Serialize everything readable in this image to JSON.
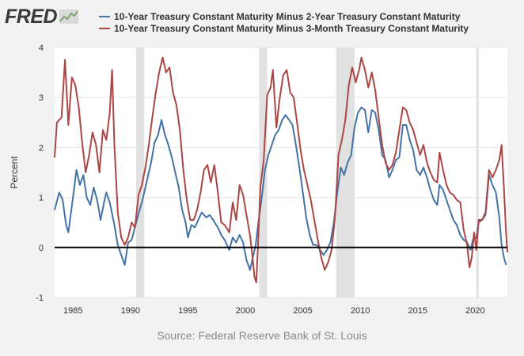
{
  "header": {
    "logo_text": "FRED",
    "logo_icon": "fred-chart-icon",
    "legend": [
      {
        "label": "10-Year Treasury Constant Maturity Minus 2-Year Treasury Constant Maturity",
        "color": "#4572a7"
      },
      {
        "label": "10-Year Treasury Constant Maturity Minus 3-Month Treasury Constant Maturity",
        "color": "#aa4643"
      }
    ]
  },
  "footer": {
    "source": "Source: Federal Reserve Bank of St. Louis"
  },
  "chart_data": {
    "type": "line",
    "xlabel": "",
    "ylabel": "Percent",
    "xlim": [
      1983.4,
      2022.8
    ],
    "ylim": [
      -1,
      4
    ],
    "x_ticks": [
      1985,
      1990,
      1995,
      2000,
      2005,
      2010,
      2015,
      2020
    ],
    "y_ticks": [
      -1,
      0,
      1,
      2,
      3,
      4
    ],
    "grid": "horizontal",
    "background": "#ffffff",
    "zero_line": true,
    "recessions": [
      [
        1990.5,
        1991.2
      ],
      [
        2001.2,
        2001.9
      ],
      [
        2007.9,
        2009.5
      ],
      [
        2020.1,
        2020.3
      ]
    ],
    "series": [
      {
        "name": "10-Year Treasury Constant Maturity Minus 2-Year Treasury Constant Maturity",
        "color": "#4572a7",
        "points": [
          [
            1983.4,
            0.75
          ],
          [
            1983.8,
            1.1
          ],
          [
            1984.1,
            0.95
          ],
          [
            1984.4,
            0.45
          ],
          [
            1984.6,
            0.3
          ],
          [
            1985.0,
            1.0
          ],
          [
            1985.3,
            1.55
          ],
          [
            1985.6,
            1.25
          ],
          [
            1985.9,
            1.45
          ],
          [
            1986.2,
            1.0
          ],
          [
            1986.5,
            0.85
          ],
          [
            1986.8,
            1.2
          ],
          [
            1987.1,
            0.95
          ],
          [
            1987.4,
            0.55
          ],
          [
            1987.7,
            0.9
          ],
          [
            1987.9,
            1.1
          ],
          [
            1988.2,
            0.9
          ],
          [
            1988.6,
            0.45
          ],
          [
            1988.9,
            0.05
          ],
          [
            1989.2,
            -0.15
          ],
          [
            1989.5,
            -0.35
          ],
          [
            1989.8,
            0.1
          ],
          [
            1990.1,
            0.15
          ],
          [
            1990.5,
            0.5
          ],
          [
            1990.8,
            0.75
          ],
          [
            1991.1,
            1.0
          ],
          [
            1991.4,
            1.3
          ],
          [
            1991.8,
            1.7
          ],
          [
            1992.1,
            2.1
          ],
          [
            1992.4,
            2.25
          ],
          [
            1992.7,
            2.55
          ],
          [
            1993.0,
            2.25
          ],
          [
            1993.3,
            2.05
          ],
          [
            1993.6,
            1.8
          ],
          [
            1993.9,
            1.5
          ],
          [
            1994.2,
            1.2
          ],
          [
            1994.5,
            0.75
          ],
          [
            1994.8,
            0.5
          ],
          [
            1995.0,
            0.2
          ],
          [
            1995.3,
            0.45
          ],
          [
            1995.6,
            0.4
          ],
          [
            1995.9,
            0.55
          ],
          [
            1996.2,
            0.7
          ],
          [
            1996.6,
            0.6
          ],
          [
            1996.9,
            0.65
          ],
          [
            1997.2,
            0.55
          ],
          [
            1997.6,
            0.4
          ],
          [
            1997.9,
            0.25
          ],
          [
            1998.2,
            0.15
          ],
          [
            1998.6,
            -0.05
          ],
          [
            1998.9,
            0.2
          ],
          [
            1999.2,
            0.1
          ],
          [
            1999.5,
            0.25
          ],
          [
            1999.8,
            0.1
          ],
          [
            2000.1,
            -0.25
          ],
          [
            2000.4,
            -0.45
          ],
          [
            2000.7,
            -0.15
          ],
          [
            2000.9,
            0.05
          ],
          [
            2001.1,
            0.45
          ],
          [
            2001.4,
            0.95
          ],
          [
            2001.7,
            1.55
          ],
          [
            2002.0,
            1.85
          ],
          [
            2002.3,
            2.05
          ],
          [
            2002.6,
            2.25
          ],
          [
            2002.9,
            2.35
          ],
          [
            2003.2,
            2.55
          ],
          [
            2003.5,
            2.65
          ],
          [
            2003.8,
            2.55
          ],
          [
            2004.1,
            2.45
          ],
          [
            2004.4,
            2.05
          ],
          [
            2004.7,
            1.6
          ],
          [
            2005.0,
            1.1
          ],
          [
            2005.3,
            0.6
          ],
          [
            2005.6,
            0.25
          ],
          [
            2005.9,
            0.05
          ],
          [
            2006.2,
            0.05
          ],
          [
            2006.5,
            -0.05
          ],
          [
            2006.8,
            -0.15
          ],
          [
            2007.1,
            -0.05
          ],
          [
            2007.4,
            0.1
          ],
          [
            2007.7,
            0.5
          ],
          [
            2008.0,
            1.1
          ],
          [
            2008.3,
            1.6
          ],
          [
            2008.6,
            1.45
          ],
          [
            2008.9,
            1.7
          ],
          [
            2009.2,
            1.85
          ],
          [
            2009.5,
            2.4
          ],
          [
            2009.8,
            2.7
          ],
          [
            2010.1,
            2.8
          ],
          [
            2010.4,
            2.75
          ],
          [
            2010.7,
            2.3
          ],
          [
            2011.0,
            2.75
          ],
          [
            2011.3,
            2.7
          ],
          [
            2011.6,
            2.35
          ],
          [
            2011.9,
            1.85
          ],
          [
            2012.2,
            1.75
          ],
          [
            2012.5,
            1.4
          ],
          [
            2012.8,
            1.55
          ],
          [
            2013.1,
            1.75
          ],
          [
            2013.4,
            1.8
          ],
          [
            2013.7,
            2.45
          ],
          [
            2014.0,
            2.45
          ],
          [
            2014.3,
            2.15
          ],
          [
            2014.6,
            1.95
          ],
          [
            2014.9,
            1.55
          ],
          [
            2015.2,
            1.45
          ],
          [
            2015.5,
            1.6
          ],
          [
            2015.8,
            1.4
          ],
          [
            2016.1,
            1.15
          ],
          [
            2016.4,
            0.95
          ],
          [
            2016.7,
            0.85
          ],
          [
            2016.9,
            1.25
          ],
          [
            2017.2,
            1.15
          ],
          [
            2017.5,
            0.95
          ],
          [
            2017.8,
            0.75
          ],
          [
            2018.1,
            0.55
          ],
          [
            2018.4,
            0.45
          ],
          [
            2018.7,
            0.25
          ],
          [
            2019.0,
            0.15
          ],
          [
            2019.3,
            0.1
          ],
          [
            2019.6,
            -0.05
          ],
          [
            2019.8,
            0.15
          ],
          [
            2020.1,
            0.2
          ],
          [
            2020.3,
            0.5
          ],
          [
            2020.6,
            0.55
          ],
          [
            2020.9,
            0.65
          ],
          [
            2021.2,
            1.45
          ],
          [
            2021.5,
            1.25
          ],
          [
            2021.8,
            1.1
          ],
          [
            2022.1,
            0.6
          ],
          [
            2022.3,
            0.05
          ],
          [
            2022.5,
            -0.2
          ],
          [
            2022.7,
            -0.35
          ]
        ]
      },
      {
        "name": "10-Year Treasury Constant Maturity Minus 3-Month Treasury Constant Maturity",
        "color": "#aa4643",
        "points": [
          [
            1983.4,
            1.8
          ],
          [
            1983.6,
            2.5
          ],
          [
            1984.0,
            2.6
          ],
          [
            1984.3,
            3.75
          ],
          [
            1984.6,
            2.45
          ],
          [
            1984.9,
            3.4
          ],
          [
            1985.2,
            3.25
          ],
          [
            1985.5,
            2.8
          ],
          [
            1985.8,
            2.1
          ],
          [
            1986.1,
            1.5
          ],
          [
            1986.4,
            1.85
          ],
          [
            1986.7,
            2.3
          ],
          [
            1987.0,
            2.05
          ],
          [
            1987.3,
            1.5
          ],
          [
            1987.6,
            2.35
          ],
          [
            1987.9,
            2.15
          ],
          [
            1988.2,
            2.7
          ],
          [
            1988.4,
            3.55
          ],
          [
            1988.6,
            2.05
          ],
          [
            1988.9,
            0.7
          ],
          [
            1989.2,
            0.2
          ],
          [
            1989.5,
            0.05
          ],
          [
            1989.8,
            0.2
          ],
          [
            1990.1,
            0.5
          ],
          [
            1990.4,
            0.4
          ],
          [
            1990.7,
            1.05
          ],
          [
            1991.0,
            1.25
          ],
          [
            1991.3,
            1.6
          ],
          [
            1991.6,
            2.05
          ],
          [
            1991.9,
            2.6
          ],
          [
            1992.2,
            3.1
          ],
          [
            1992.5,
            3.5
          ],
          [
            1992.8,
            3.8
          ],
          [
            1993.1,
            3.5
          ],
          [
            1993.4,
            3.6
          ],
          [
            1993.7,
            3.1
          ],
          [
            1994.0,
            2.85
          ],
          [
            1994.3,
            2.35
          ],
          [
            1994.6,
            1.55
          ],
          [
            1994.9,
            0.95
          ],
          [
            1995.2,
            0.55
          ],
          [
            1995.5,
            0.55
          ],
          [
            1995.8,
            0.75
          ],
          [
            1996.1,
            1.1
          ],
          [
            1996.4,
            1.55
          ],
          [
            1996.7,
            1.65
          ],
          [
            1997.0,
            1.3
          ],
          [
            1997.3,
            1.65
          ],
          [
            1997.6,
            1.1
          ],
          [
            1997.9,
            0.5
          ],
          [
            1998.2,
            0.45
          ],
          [
            1998.6,
            0.3
          ],
          [
            1998.9,
            0.9
          ],
          [
            1999.2,
            0.55
          ],
          [
            1999.5,
            1.25
          ],
          [
            1999.8,
            1.05
          ],
          [
            2000.1,
            0.65
          ],
          [
            2000.4,
            0.25
          ],
          [
            2000.6,
            -0.15
          ],
          [
            2000.8,
            -0.6
          ],
          [
            2000.95,
            -0.7
          ],
          [
            2001.1,
            0.05
          ],
          [
            2001.3,
            1.2
          ],
          [
            2001.6,
            1.75
          ],
          [
            2001.9,
            3.05
          ],
          [
            2002.2,
            3.2
          ],
          [
            2002.4,
            3.55
          ],
          [
            2002.7,
            2.4
          ],
          [
            2003.0,
            3.0
          ],
          [
            2003.3,
            3.45
          ],
          [
            2003.6,
            3.55
          ],
          [
            2003.9,
            3.1
          ],
          [
            2004.2,
            3.0
          ],
          [
            2004.5,
            2.5
          ],
          [
            2004.8,
            1.95
          ],
          [
            2005.1,
            1.55
          ],
          [
            2005.4,
            1.25
          ],
          [
            2005.7,
            0.95
          ],
          [
            2006.0,
            0.55
          ],
          [
            2006.3,
            0.15
          ],
          [
            2006.6,
            -0.2
          ],
          [
            2006.9,
            -0.45
          ],
          [
            2007.2,
            -0.3
          ],
          [
            2007.5,
            -0.05
          ],
          [
            2007.8,
            0.6
          ],
          [
            2008.1,
            1.85
          ],
          [
            2008.4,
            2.15
          ],
          [
            2008.7,
            2.55
          ],
          [
            2009.0,
            3.25
          ],
          [
            2009.3,
            3.6
          ],
          [
            2009.6,
            3.3
          ],
          [
            2009.9,
            3.55
          ],
          [
            2010.1,
            3.8
          ],
          [
            2010.4,
            3.55
          ],
          [
            2010.7,
            3.2
          ],
          [
            2011.0,
            3.5
          ],
          [
            2011.3,
            3.15
          ],
          [
            2011.6,
            2.6
          ],
          [
            2011.9,
            2.05
          ],
          [
            2012.2,
            1.7
          ],
          [
            2012.5,
            1.55
          ],
          [
            2012.8,
            1.65
          ],
          [
            2013.1,
            1.9
          ],
          [
            2013.4,
            2.35
          ],
          [
            2013.7,
            2.8
          ],
          [
            2014.0,
            2.75
          ],
          [
            2014.3,
            2.5
          ],
          [
            2014.6,
            2.35
          ],
          [
            2014.9,
            2.1
          ],
          [
            2015.2,
            1.85
          ],
          [
            2015.5,
            2.05
          ],
          [
            2015.8,
            1.7
          ],
          [
            2016.1,
            1.5
          ],
          [
            2016.4,
            1.35
          ],
          [
            2016.7,
            1.3
          ],
          [
            2016.9,
            1.9
          ],
          [
            2017.2,
            1.55
          ],
          [
            2017.5,
            1.25
          ],
          [
            2017.8,
            1.1
          ],
          [
            2018.1,
            1.05
          ],
          [
            2018.4,
            0.95
          ],
          [
            2018.7,
            0.9
          ],
          [
            2019.0,
            0.35
          ],
          [
            2019.3,
            0.05
          ],
          [
            2019.5,
            -0.4
          ],
          [
            2019.7,
            -0.2
          ],
          [
            2019.9,
            0.3
          ],
          [
            2020.1,
            -0.05
          ],
          [
            2020.3,
            0.55
          ],
          [
            2020.6,
            0.55
          ],
          [
            2020.9,
            0.7
          ],
          [
            2021.2,
            1.55
          ],
          [
            2021.5,
            1.4
          ],
          [
            2021.8,
            1.55
          ],
          [
            2022.1,
            1.75
          ],
          [
            2022.3,
            2.05
          ],
          [
            2022.5,
            1.2
          ],
          [
            2022.7,
            0.25
          ],
          [
            2022.8,
            -0.1
          ]
        ]
      }
    ]
  }
}
